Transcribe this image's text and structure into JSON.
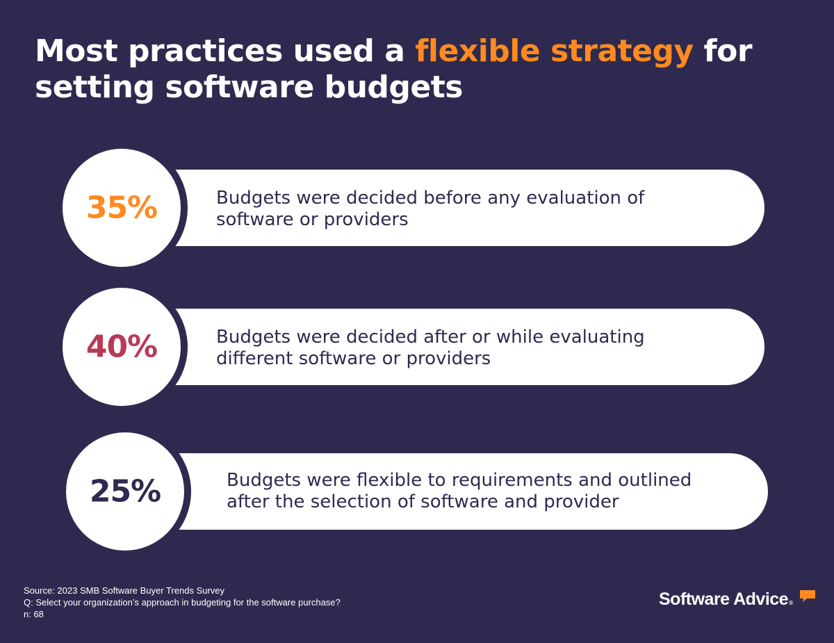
{
  "title": {
    "before": "Most practices used a ",
    "highlight": "flexible strategy",
    "after": " for setting software budgets"
  },
  "chart_data": {
    "type": "table",
    "unit": "%",
    "items": [
      {
        "value": 35,
        "label": "35%",
        "text": "Budgets were decided before any evaluation of software or providers",
        "color": "#ff8a1f"
      },
      {
        "value": 40,
        "label": "40%",
        "text": "Budgets were decided after or while evaluating different software or providers",
        "color": "#b83a57"
      },
      {
        "value": 25,
        "label": "25%",
        "text": "Budgets were flexible to requirements and outlined after the selection of software and provider",
        "color": "#2e2a4f"
      }
    ]
  },
  "footer": {
    "source": "Source: 2023 SMB Software Buyer Trends Survey",
    "question": "Q: Select your organization’s approach in budgeting for the software purchase?",
    "n": "n: 68"
  },
  "brand": {
    "name": "Software Advice",
    "reg": "®",
    "accent_color": "#ff8a1f",
    "icon": "speech-bubble-icon"
  },
  "colors": {
    "background": "#2e2a4f",
    "card": "#ffffff",
    "highlight": "#ff8a1f"
  }
}
